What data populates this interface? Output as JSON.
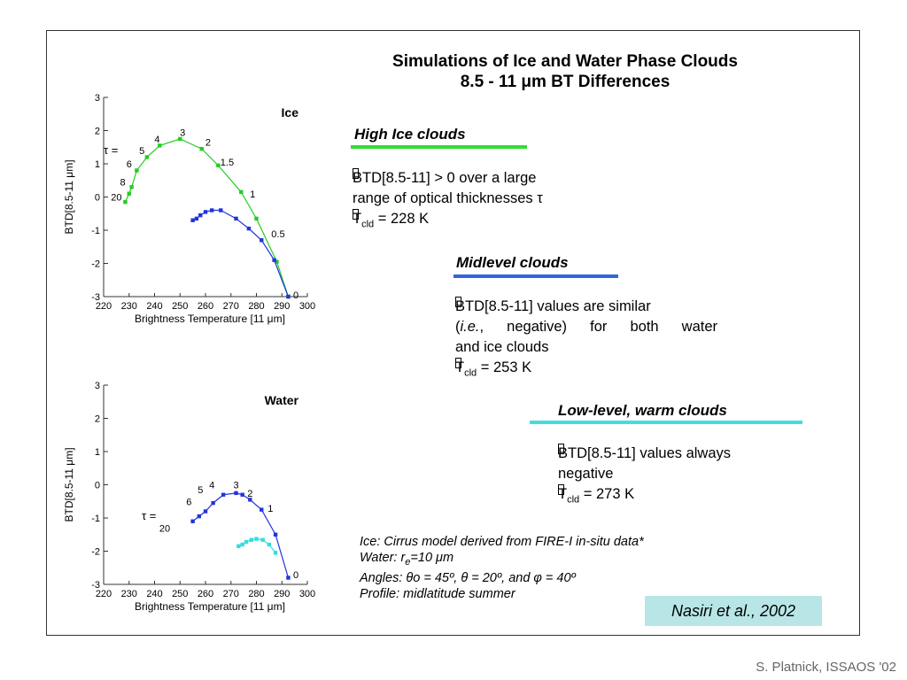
{
  "title_line1": "Simulations of Ice and Water Phase Clouds",
  "title_line2": "8.5 - 11 μm BT Differences",
  "sections": [
    {
      "heading": "High Ice clouds",
      "color": "#33dd33",
      "line1": "BTD[8.5-11] > 0 over a large",
      "line2": "range of optical thicknesses τ",
      "tcld_label": "T",
      "tcld_sub": "cld",
      "tcld_value": " = 228 K"
    },
    {
      "heading": "Midlevel clouds",
      "color": "#3366dd",
      "line1": "BTD[8.5-11] values are similar",
      "line2a": "(",
      "line2b": "i.e.",
      "line2c": ", negative) for both water",
      "line3": "and ice clouds",
      "tcld_label": "T",
      "tcld_sub": "cld",
      "tcld_value": " = 253 K"
    },
    {
      "heading": "Low-level, warm clouds",
      "color": "#44dddd",
      "line1": "BTD[8.5-11] values always",
      "line2": "negative",
      "tcld_label": "T",
      "tcld_sub": "cld",
      "tcld_value": " = 273 K"
    }
  ],
  "notes": {
    "ice": "Ice:  Cirrus model derived from FIRE-I in-situ data*",
    "water_a": "Water:  r",
    "water_sub": "e",
    "water_b": "=10 μm",
    "angles": "Angles:  θo = 45º, θ = 20º, and φ = 40º",
    "profile": "Profile:  midlatitude summer"
  },
  "citation": "Nasiri et al., 2002",
  "footer": "S. Platnick, ISSAOS '02",
  "chart_data": [
    {
      "type": "line",
      "title": "Ice",
      "xlabel": "Brightness Temperature [11 μm]",
      "ylabel": "BTD[8.5-11 μm]",
      "xlim": [
        220,
        300
      ],
      "ylim": [
        -3,
        3
      ],
      "xticks": [
        "220",
        "230",
        "240",
        "250",
        "260",
        "270",
        "280",
        "290",
        "300"
      ],
      "yticks": [
        "3",
        "2",
        "1",
        "0",
        "-1",
        "-2",
        "-3"
      ],
      "tau_label": "τ =",
      "series": [
        {
          "color": "#22cc22",
          "x": [
            228.5,
            230,
            231,
            233,
            237,
            242,
            250,
            258.5,
            265,
            274,
            280,
            288,
            292.5
          ],
          "y": [
            -0.15,
            0.1,
            0.3,
            0.8,
            1.2,
            1.55,
            1.75,
            1.45,
            0.95,
            0.15,
            -0.65,
            -1.95,
            -3.0
          ]
        },
        {
          "color": "#2233dd",
          "x": [
            255,
            256.5,
            258,
            260,
            262.5,
            266,
            272,
            277,
            282,
            287,
            292.5
          ],
          "y": [
            -0.7,
            -0.65,
            -0.55,
            -0.45,
            -0.4,
            -0.4,
            -0.65,
            -0.95,
            -1.3,
            -1.9,
            -3.0
          ]
        }
      ],
      "annotations": [
        {
          "text": "20",
          "x": 225,
          "y": 0.0
        },
        {
          "text": "8",
          "x": 227.5,
          "y": 0.45
        },
        {
          "text": "6",
          "x": 230,
          "y": 1.0
        },
        {
          "text": "5",
          "x": 235,
          "y": 1.4
        },
        {
          "text": "4",
          "x": 241,
          "y": 1.75
        },
        {
          "text": "3",
          "x": 251,
          "y": 1.95
        },
        {
          "text": "2",
          "x": 261,
          "y": 1.65
        },
        {
          "text": "1.5",
          "x": 268.5,
          "y": 1.05
        },
        {
          "text": "1",
          "x": 278.5,
          "y": 0.1
        },
        {
          "text": "0.5",
          "x": 288.5,
          "y": -1.1
        },
        {
          "text": "0",
          "x": 295.5,
          "y": -2.95
        }
      ]
    },
    {
      "type": "line",
      "title": "Water",
      "xlabel": "Brightness Temperature [11 μm]",
      "ylabel": "BTD[8.5-11 μm]",
      "xlim": [
        220,
        300
      ],
      "ylim": [
        -3,
        3
      ],
      "xticks": [
        "220",
        "230",
        "240",
        "250",
        "260",
        "270",
        "280",
        "290",
        "300"
      ],
      "yticks": [
        "3",
        "2",
        "1",
        "0",
        "-1",
        "-2",
        "-3"
      ],
      "tau_label": "τ =",
      "series": [
        {
          "color": "#2233dd",
          "x": [
            255,
            257.5,
            260,
            263,
            267,
            272,
            274.5,
            277.5,
            282,
            287.5,
            292.5
          ],
          "y": [
            -1.1,
            -0.95,
            -0.8,
            -0.55,
            -0.3,
            -0.25,
            -0.3,
            -0.45,
            -0.75,
            -1.5,
            -2.8
          ]
        },
        {
          "color": "#33dddd",
          "x": [
            273,
            274.5,
            276,
            278,
            280,
            282.5,
            285,
            287.5
          ],
          "y": [
            -1.85,
            -1.8,
            -1.72,
            -1.66,
            -1.63,
            -1.66,
            -1.8,
            -2.05
          ]
        }
      ],
      "annotations": [
        {
          "text": "20",
          "x": 244,
          "y": -1.3
        },
        {
          "text": "6",
          "x": 253.5,
          "y": -0.5
        },
        {
          "text": "5",
          "x": 258,
          "y": -0.15
        },
        {
          "text": "4",
          "x": 262.5,
          "y": 0.0
        },
        {
          "text": "3",
          "x": 272,
          "y": 0.0
        },
        {
          "text": "2",
          "x": 277.5,
          "y": -0.25
        },
        {
          "text": "1",
          "x": 285.5,
          "y": -0.7
        },
        {
          "text": "0",
          "x": 295.5,
          "y": -2.7
        }
      ]
    }
  ]
}
